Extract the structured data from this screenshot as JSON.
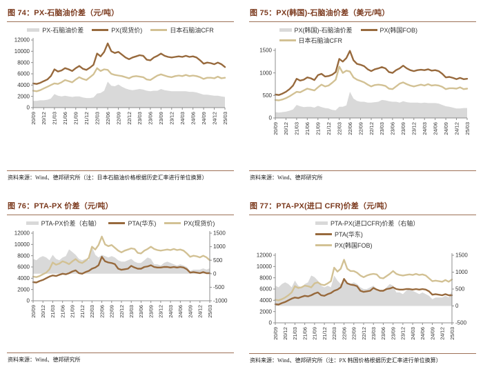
{
  "colors": {
    "title_brown": "#7B3A1E",
    "rule_brown": "#9C6F55",
    "area_gray": "#D9D9D9",
    "line_dark_brown": "#97693C",
    "line_tan": "#D2C194",
    "axis_text": "#333333"
  },
  "panels": [
    {
      "title": "图 74：PX-石脑油价差（元/吨）",
      "source": "资料来源：Wind、德邦研究所（注：日本石脑油价格根据历史汇率进行单位换算）"
    },
    {
      "title": "图 75：PX(韩国)-石脑油价差（美元/吨）",
      "source": "资料来源：Wind、德邦研究所"
    },
    {
      "title": "图 76：PTA-PX 价差（元/吨）",
      "source": "资料来源：Wind、德邦研究所"
    },
    {
      "title": "图 77：PTA-PX(进口 CFR)价差（元/吨）",
      "source": "资料来源：Wind、德邦研究所（注：PX 韩国价格根据历史汇率进行单位换算）"
    }
  ],
  "chart_data": [
    {
      "type": "area+line",
      "title": "PX-石脑油价差（元/吨）",
      "legend_layout": "row",
      "x_labels": [
        "20/09",
        "20/12",
        "21/03",
        "21/06",
        "21/09",
        "21/12",
        "22/03",
        "22/06",
        "22/09",
        "22/12",
        "23/03",
        "23/06",
        "23/09",
        "23/12",
        "24/03",
        "24/06",
        "24/09",
        "24/12",
        "25/03"
      ],
      "x_label_every": 3,
      "left_axis": {
        "min": 0,
        "max": 12000,
        "ticks": [
          0,
          2000,
          4000,
          6000,
          8000,
          10000,
          12000
        ]
      },
      "right_axis": null,
      "series": [
        {
          "name": "PX-石脑油价差",
          "type": "area",
          "axis": "left",
          "color": "#D9D9D9",
          "values": [
            1200,
            1200,
            1300,
            1300,
            1400,
            1600,
            2400,
            2100,
            2000,
            2100,
            2000,
            1900,
            2000,
            2000,
            1800,
            1700,
            1700,
            1800,
            2500,
            2600,
            3000,
            4600,
            3900,
            3800,
            4100,
            3700,
            3400,
            3200,
            3100,
            3200,
            3300,
            3200,
            3000,
            2900,
            3000,
            3000,
            3300,
            3100,
            3000,
            2900,
            2900,
            2900,
            2900,
            2900,
            2800,
            2800,
            2700,
            2500,
            2300,
            2300,
            2200,
            2100,
            2100,
            2000,
            1900
          ]
        },
        {
          "name": "PX(现货价)",
          "type": "line",
          "axis": "left",
          "color": "#97693C",
          "values": [
            4300,
            4200,
            4400,
            4700,
            5000,
            5600,
            6800,
            6400,
            6600,
            7000,
            6800,
            6500,
            7000,
            7400,
            6900,
            6700,
            7100,
            7600,
            9600,
            9100,
            9900,
            11400,
            10000,
            9700,
            9900,
            9400,
            8900,
            8600,
            8900,
            9100,
            9300,
            9200,
            8500,
            8400,
            8900,
            9200,
            9600,
            9200,
            9000,
            8900,
            9000,
            9100,
            9000,
            9200,
            9000,
            9100,
            8900,
            8400,
            7800,
            8000,
            7900,
            7700,
            8000,
            7700,
            7200
          ]
        },
        {
          "name": "日本石脑油CFR",
          "type": "line",
          "axis": "left",
          "color": "#D2C194",
          "values": [
            3000,
            2900,
            3100,
            3400,
            3700,
            4000,
            4300,
            4200,
            4500,
            4900,
            4700,
            4500,
            5000,
            5400,
            5100,
            4900,
            5400,
            5900,
            7000,
            6500,
            6800,
            6700,
            6000,
            5800,
            5700,
            5600,
            5400,
            5200,
            5500,
            5600,
            5500,
            5400,
            5000,
            4900,
            5300,
            5700,
            5900,
            5700,
            5500,
            5400,
            5600,
            5700,
            5600,
            5800,
            5600,
            5700,
            5600,
            5400,
            5100,
            5300,
            5300,
            5200,
            5500,
            5200,
            5300
          ]
        }
      ]
    },
    {
      "type": "area+line",
      "title": "PX(韩国)-石脑油价差（美元/吨）",
      "legend_layout": "two-line",
      "x_labels": [
        "20/09",
        "20/12",
        "21/03",
        "21/06",
        "21/09",
        "21/12",
        "22/03",
        "22/06",
        "22/09",
        "22/12",
        "23/03",
        "23/06",
        "23/09",
        "23/12",
        "24/03",
        "24/06",
        "24/09",
        "24/12",
        "25/03"
      ],
      "x_label_every": 3,
      "left_axis": {
        "min": 0,
        "max": 1500,
        "ticks": [
          0,
          500,
          1000,
          1500
        ]
      },
      "right_axis": null,
      "series": [
        {
          "name": "PX(韩国)-石脑油价差",
          "type": "area",
          "axis": "left",
          "color": "#D9D9D9",
          "values": [
            130,
            120,
            130,
            140,
            160,
            190,
            290,
            260,
            240,
            250,
            250,
            230,
            270,
            240,
            220,
            210,
            180,
            170,
            250,
            250,
            280,
            580,
            430,
            380,
            360,
            360,
            340,
            340,
            350,
            360,
            400,
            390,
            370,
            360,
            360,
            340,
            370,
            350,
            340,
            340,
            340,
            330,
            340,
            330,
            330,
            330,
            320,
            290,
            260,
            250,
            230,
            210,
            210,
            220,
            220
          ]
        },
        {
          "name": "PX(韩国FOB)",
          "type": "line",
          "axis": "left",
          "color": "#97693C",
          "values": [
            520,
            510,
            540,
            580,
            640,
            720,
            870,
            830,
            850,
            900,
            880,
            840,
            950,
            980,
            920,
            930,
            960,
            1020,
            1310,
            1250,
            1330,
            1490,
            1280,
            1200,
            1180,
            1150,
            1080,
            1040,
            1080,
            1100,
            1130,
            1100,
            1020,
            1000,
            1060,
            1100,
            1160,
            1100,
            1060,
            1040,
            1060,
            1070,
            1060,
            1080,
            1050,
            1060,
            1040,
            980,
            900,
            910,
            890,
            860,
            890,
            860,
            870
          ]
        },
        {
          "name": "日本石脑油CFR",
          "type": "line",
          "axis": "left",
          "color": "#D2C194",
          "values": [
            400,
            390,
            410,
            440,
            480,
            530,
            580,
            570,
            610,
            650,
            630,
            610,
            680,
            740,
            700,
            720,
            780,
            850,
            1140,
            1000,
            1050,
            1030,
            900,
            850,
            820,
            790,
            740,
            700,
            730,
            740,
            730,
            710,
            650,
            640,
            700,
            760,
            790,
            750,
            720,
            700,
            720,
            740,
            720,
            750,
            720,
            730,
            720,
            690,
            640,
            660,
            660,
            650,
            680,
            640,
            650
          ]
        }
      ]
    },
    {
      "type": "area+line",
      "title": "PTA-PX 价差（元/吨）",
      "legend_layout": "row",
      "x_labels": [
        "20/09",
        "20/12",
        "21/03",
        "21/06",
        "21/09",
        "21/12",
        "22/03",
        "22/06",
        "22/09",
        "22/12",
        "23/03",
        "23/06",
        "23/09",
        "23/12",
        "24/03",
        "24/06",
        "24/09",
        "24/12",
        "25/03"
      ],
      "x_label_every": 3,
      "left_axis": {
        "min": 0,
        "max": 12000,
        "ticks": [
          0,
          2000,
          4000,
          6000,
          8000,
          10000,
          12000
        ]
      },
      "right_axis": {
        "min": -1000,
        "max": 1500,
        "ticks": [
          -1000,
          -500,
          0,
          500,
          1000,
          1500
        ]
      },
      "series": [
        {
          "name": "PTA-PX价差（右轴）",
          "type": "area",
          "axis": "right",
          "color": "#D9D9D9",
          "values": [
            550,
            500,
            600,
            650,
            600,
            500,
            700,
            550,
            500,
            600,
            650,
            900,
            800,
            700,
            550,
            500,
            550,
            500,
            1000,
            700,
            600,
            700,
            650,
            600,
            650,
            600,
            500,
            450,
            450,
            500,
            550,
            450,
            400,
            400,
            500,
            600,
            550,
            350,
            350,
            300,
            400,
            450,
            400,
            350,
            300,
            350,
            300,
            250,
            100,
            150,
            150,
            150,
            200,
            150,
            200
          ]
        },
        {
          "name": "PTA(华东)",
          "type": "line",
          "axis": "left",
          "color": "#97693C",
          "values": [
            3300,
            3250,
            3500,
            3700,
            4000,
            4300,
            4500,
            4400,
            4600,
            4800,
            4700,
            4900,
            5200,
            5400,
            4900,
            4800,
            5100,
            5300,
            5700,
            5900,
            6300,
            7800,
            7000,
            6800,
            6700,
            6500,
            5700,
            5500,
            5600,
            5700,
            6200,
            5900,
            5700,
            5700,
            6000,
            6100,
            6300,
            6000,
            5900,
            5900,
            6000,
            6000,
            5900,
            6000,
            5900,
            6000,
            5900,
            5600,
            5000,
            5100,
            5000,
            4900,
            5100,
            4900,
            4900
          ]
        },
        {
          "name": "PX(现货价)",
          "type": "line",
          "axis": "left",
          "color": "#D2C194",
          "values": [
            4300,
            4200,
            4400,
            4700,
            5000,
            5600,
            6800,
            6400,
            6600,
            7000,
            6800,
            6500,
            7000,
            7400,
            6900,
            6700,
            7100,
            7600,
            9600,
            9100,
            9900,
            11400,
            10000,
            9700,
            9900,
            9400,
            8900,
            8600,
            8900,
            9100,
            9300,
            9200,
            8500,
            8400,
            8900,
            9200,
            9600,
            9200,
            9000,
            8900,
            9000,
            9100,
            9000,
            9200,
            9000,
            9100,
            8900,
            8400,
            7800,
            8000,
            7900,
            7700,
            8000,
            7700,
            7200
          ]
        }
      ]
    },
    {
      "type": "area+line",
      "title": "PTA-PX(进口 CFR)价差（元/吨）",
      "legend_layout": "stacked",
      "x_labels": [
        "20/09",
        "20/12",
        "21/03",
        "21/06",
        "21/09",
        "21/12",
        "22/03",
        "22/06",
        "22/09",
        "22/12",
        "23/03",
        "23/06",
        "23/09",
        "23/12",
        "24/03",
        "24/06",
        "24/09",
        "24/12",
        "25/03"
      ],
      "x_label_every": 3,
      "left_axis": {
        "min": 0,
        "max": 12000,
        "ticks": [
          0,
          2000,
          4000,
          6000,
          8000,
          10000,
          12000
        ]
      },
      "right_axis": {
        "min": -500,
        "max": 1500,
        "ticks": [
          -500,
          0,
          500,
          1000,
          1500
        ]
      },
      "series": [
        {
          "name": "PTA-PX(进口CFR)价差（右轴）",
          "type": "area",
          "axis": "right",
          "color": "#D9D9D9",
          "values": [
            600,
            550,
            650,
            700,
            650,
            550,
            750,
            600,
            550,
            650,
            700,
            900,
            850,
            750,
            600,
            550,
            600,
            550,
            900,
            750,
            650,
            750,
            700,
            650,
            700,
            650,
            550,
            500,
            500,
            550,
            600,
            500,
            450,
            450,
            550,
            650,
            600,
            400,
            400,
            350,
            450,
            500,
            450,
            400,
            350,
            400,
            350,
            300,
            200,
            250,
            250,
            250,
            300,
            250,
            450
          ]
        },
        {
          "name": "PTA(华东)",
          "type": "line",
          "axis": "left",
          "color": "#97693C",
          "values": [
            3300,
            3250,
            3500,
            3700,
            4000,
            4300,
            4500,
            4400,
            4600,
            4800,
            4700,
            4900,
            5200,
            5400,
            4900,
            4800,
            5100,
            5300,
            5700,
            5900,
            6300,
            7800,
            7000,
            6800,
            6700,
            6500,
            5700,
            5500,
            5600,
            5700,
            6200,
            5900,
            5700,
            5700,
            6000,
            6100,
            6300,
            6000,
            5900,
            5900,
            6000,
            6000,
            5900,
            6000,
            5900,
            6000,
            5900,
            5600,
            5000,
            5100,
            5000,
            4900,
            5100,
            4900,
            4900
          ]
        },
        {
          "name": "PX(韩国FOB)",
          "type": "line",
          "axis": "left",
          "color": "#D2C194",
          "values": [
            4100,
            4000,
            4200,
            4500,
            4900,
            5400,
            6500,
            6200,
            6300,
            6600,
            6500,
            6300,
            7000,
            7200,
            6800,
            6700,
            7000,
            7400,
            9800,
            9100,
            9600,
            11200,
            9600,
            9200,
            9200,
            8900,
            8400,
            8100,
            8400,
            8600,
            8700,
            8600,
            8000,
            7900,
            8300,
            8700,
            9200,
            8700,
            8500,
            8400,
            8500,
            8600,
            8500,
            8700,
            8500,
            8600,
            8400,
            7900,
            7400,
            7500,
            7400,
            7300,
            7600,
            7300,
            7700
          ]
        }
      ]
    }
  ]
}
